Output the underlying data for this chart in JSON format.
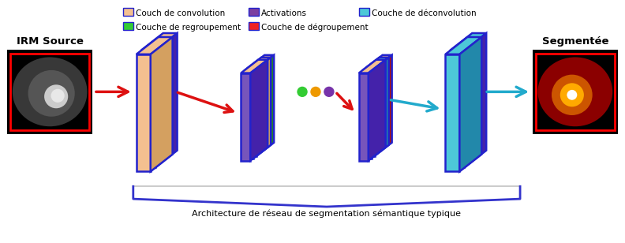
{
  "legend_items": [
    {
      "label": "Couch de convolution",
      "color": "#F4C090"
    },
    {
      "label": "Activations",
      "color": "#7B3FA0"
    },
    {
      "label": "Couche de déconvolution",
      "color": "#4DC8D8"
    },
    {
      "label": "Couche de regroupement",
      "color": "#33CC33"
    },
    {
      "label": "Couche de dégroupement",
      "color": "#EE2222"
    }
  ],
  "bottom_label": "Architecture de réseau de segmentation sémantique typique",
  "left_label": "IRM Source",
  "right_label": "Segmentée",
  "bg_color": "#FFFFFF",
  "red_arrow_color": "#DD1111",
  "teal_arrow_color": "#22AACC",
  "border_color": "#2222CC",
  "purple_face": "#7755BB",
  "purple_side": "#4422AA",
  "conv_color": "#F4C090",
  "pool_color": "#33CC33",
  "deconv_color": "#4DC8D8",
  "depool_color": "#EE2222",
  "dot_colors": [
    "#33CC33",
    "#EE9900",
    "#7733AA"
  ],
  "bracket_color": "#3333CC",
  "bracket_line_color": "#AAAAAA"
}
